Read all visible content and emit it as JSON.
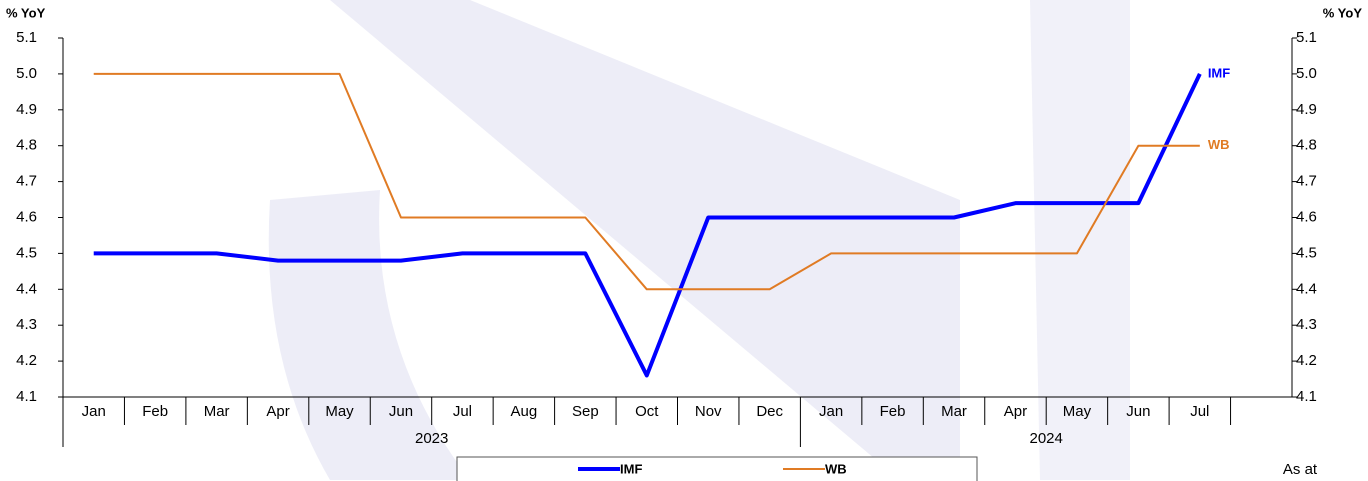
{
  "chart_data": {
    "type": "line",
    "ylabel": "% YoY",
    "y2label": "% YoY",
    "categories": [
      "Jan",
      "Feb",
      "Mar",
      "Apr",
      "May",
      "Jun",
      "Jul",
      "Aug",
      "Sep",
      "Oct",
      "Nov",
      "Dec",
      "Jan",
      "Feb",
      "Mar",
      "Apr",
      "May",
      "Jun",
      "Jul",
      null
    ],
    "category_groups": [
      "2023",
      "2023",
      "2023",
      "2023",
      "2023",
      "2023",
      "2023",
      "2023",
      "2023",
      "2023",
      "2023",
      "2023",
      "2024",
      "2024",
      "2024",
      "2024",
      "2024",
      "2024",
      "2024",
      "2024"
    ],
    "series": [
      {
        "name": "IMF",
        "color": "#0000ff",
        "width": 4,
        "values": [
          4.5,
          4.5,
          4.5,
          4.48,
          4.48,
          4.48,
          4.5,
          4.5,
          4.5,
          4.16,
          4.6,
          4.6,
          4.6,
          4.6,
          4.6,
          4.64,
          4.64,
          4.64,
          5.0,
          null
        ]
      },
      {
        "name": "WB",
        "color": "#e07b24",
        "width": 2,
        "values": [
          5.0,
          5.0,
          5.0,
          5.0,
          5.0,
          4.6,
          4.6,
          4.6,
          4.6,
          4.4,
          4.4,
          4.4,
          4.5,
          4.5,
          4.5,
          4.5,
          4.5,
          4.8,
          4.8,
          null
        ]
      }
    ],
    "ylim": [
      4.1,
      5.1
    ],
    "yticks": [
      4.1,
      4.2,
      4.3,
      4.4,
      {
        "value": 4.5,
        "label": "4.5"
      },
      4.6,
      4.7,
      4.8,
      4.9,
      {
        "value": 5,
        "label": "5.0"
      },
      5.1
    ],
    "y2lim": [
      4.1,
      5.1
    ],
    "y2ticks": [
      4.1,
      4.2,
      4.3,
      4.4,
      4.5,
      4.6,
      4.7,
      4.8,
      4.9,
      {
        "value": 5,
        "label": "5.0"
      },
      5.1
    ],
    "legend": "bottom",
    "annotation": "As at"
  }
}
